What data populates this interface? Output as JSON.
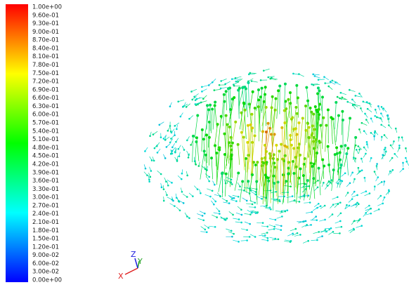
{
  "colorbar": {
    "labels": [
      "1.00e+00",
      "9.60e-01",
      "9.30e-01",
      "9.00e-01",
      "8.70e-01",
      "8.40e-01",
      "8.10e-01",
      "7.80e-01",
      "7.50e-01",
      "7.20e-01",
      "6.90e-01",
      "6.60e-01",
      "6.30e-01",
      "6.00e-01",
      "5.70e-01",
      "5.40e-01",
      "5.10e-01",
      "4.80e-01",
      "4.50e-01",
      "4.20e-01",
      "3.90e-01",
      "3.60e-01",
      "3.30e-01",
      "3.00e-01",
      "2.70e-01",
      "2.40e-01",
      "2.10e-01",
      "1.80e-01",
      "1.50e-01",
      "1.20e-01",
      "9.00e-02",
      "6.00e-02",
      "3.00e-02",
      "0.00e+00"
    ]
  },
  "axes_triad": {
    "x": "X",
    "y": "Y",
    "z": "Z"
  }
}
